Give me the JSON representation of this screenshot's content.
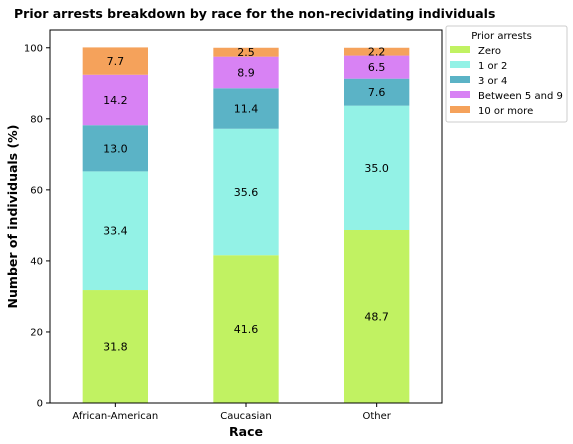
{
  "chart_data": {
    "type": "bar",
    "stacked": true,
    "title": "Prior arrests breakdown by race for the non-recividating individuals",
    "xlabel": "Race",
    "ylabel": "Number of individuals (%)",
    "ylim": [
      0,
      105
    ],
    "yticks": [
      0,
      20,
      40,
      60,
      80,
      100
    ],
    "categories": [
      "African-American",
      "Caucasian",
      "Other"
    ],
    "series": [
      {
        "name": "Zero",
        "color": "#c1f262",
        "values": [
          31.8,
          41.6,
          48.7
        ],
        "labels": [
          "31.8",
          "41.6",
          "48.7"
        ]
      },
      {
        "name": "1 or 2",
        "color": "#93f2e6",
        "values": [
          33.4,
          35.6,
          35.0
        ],
        "labels": [
          "33.4",
          "35.6",
          "35.0"
        ]
      },
      {
        "name": "3 or 4",
        "color": "#5bb3c6",
        "values": [
          13.0,
          11.4,
          7.6
        ],
        "labels": [
          "13.0",
          "11.4",
          "7.6"
        ]
      },
      {
        "name": "Between 5 and 9",
        "color": "#d882f4",
        "values": [
          14.2,
          8.9,
          6.5
        ],
        "labels": [
          "14.2",
          "8.9",
          "6.5"
        ]
      },
      {
        "name": "10 or more",
        "color": "#f5a25b",
        "values": [
          7.7,
          2.5,
          2.2
        ],
        "labels": [
          "7.7",
          "2.5",
          "2.2"
        ]
      }
    ],
    "legend": {
      "title": "Prior arrests",
      "position": "outside-top-right"
    },
    "grid": false
  }
}
